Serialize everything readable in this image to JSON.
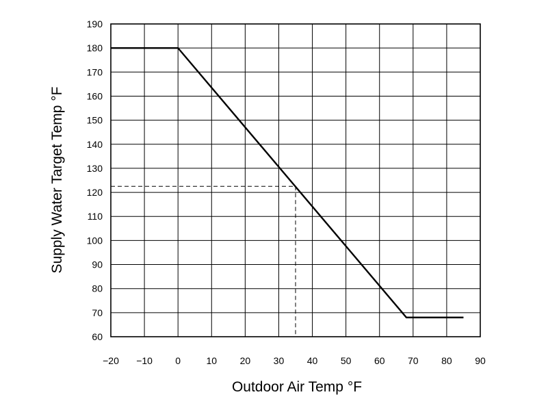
{
  "chart_data": {
    "type": "line",
    "title": "",
    "xlabel": "Outdoor Air Temp °F",
    "ylabel": "Supply Water Target Temp °F",
    "xlim": [
      -20,
      90
    ],
    "ylim": [
      60,
      190
    ],
    "grid": true,
    "legend": "none",
    "x_ticks": [
      "−20",
      "−10",
      "0",
      "10",
      "20",
      "30",
      "40",
      "50",
      "60",
      "70",
      "80",
      "90"
    ],
    "y_ticks": [
      "190",
      "180",
      "170",
      "160",
      "150",
      "140",
      "130",
      "120",
      "110",
      "100",
      "90",
      "80",
      "70",
      "60"
    ],
    "series": [
      {
        "x": [
          -20,
          0,
          68,
          85
        ],
        "y": [
          180,
          180,
          68,
          68
        ],
        "color": "#000000"
      }
    ],
    "reference_point": {
      "x": 35,
      "y": 122.5,
      "style": "dashed"
    }
  }
}
